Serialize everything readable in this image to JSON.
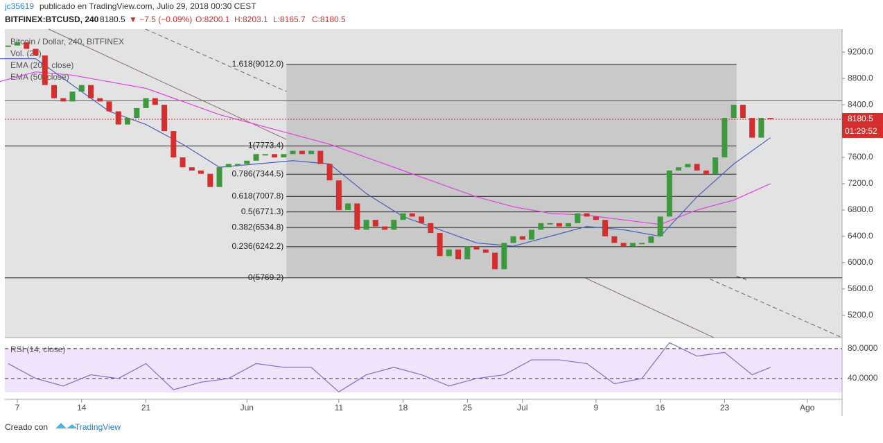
{
  "header": {
    "user": "jc35619",
    "published": "publicado en TradingView.com, Julio 29, 2018 00:30 CEST",
    "symbol": "BITFINEX:BTCUSD, 240",
    "last": "8180.5",
    "change": "▼ −7.5 (−0.09%)",
    "open": "O:8200.1",
    "high": "H:8203.1",
    "low": "L:8165.7",
    "close": "C:8180.5"
  },
  "legend": {
    "title": "Bitcoin / Dollar, 240, BITFINEX",
    "vol": "Vol. (20)",
    "ema200": "EMA (200, close)",
    "ema50": "EMA (50, close)",
    "rsi": "RSI (14, close)"
  },
  "footer": {
    "created": "Creado con",
    "brand": "TradingView"
  },
  "chart_data": {
    "type": "candlestick",
    "xlim": [
      5.64,
      96.8
    ],
    "xticks": [
      {
        "value": 7,
        "label": "7"
      },
      {
        "value": 14,
        "label": "14"
      },
      {
        "value": 21,
        "label": "21"
      },
      {
        "value": 32,
        "label": "Jun"
      },
      {
        "value": 42,
        "label": "11"
      },
      {
        "value": 49,
        "label": "18"
      },
      {
        "value": 56,
        "label": "25"
      },
      {
        "value": 62,
        "label": "Jul"
      },
      {
        "value": 70,
        "label": "9"
      },
      {
        "value": 77,
        "label": "16"
      },
      {
        "value": 84,
        "label": "23"
      },
      {
        "value": 93,
        "label": "Ago"
      }
    ],
    "ylim": [
      4860,
      9550
    ],
    "yticks": [
      {
        "value": 5200,
        "label": "5200.0"
      },
      {
        "value": 5600,
        "label": "5600.0"
      },
      {
        "value": 6000,
        "label": "6000.0"
      },
      {
        "value": 6400,
        "label": "6400.0"
      },
      {
        "value": 6800,
        "label": "6800.0"
      },
      {
        "value": 7200,
        "label": "7200.0"
      },
      {
        "value": 7600,
        "label": "7600.0"
      },
      {
        "value": 8000,
        "label": "8000.0"
      },
      {
        "value": 8400,
        "label": "8400.0"
      },
      {
        "value": 8800,
        "label": "8800.0"
      },
      {
        "value": 9200,
        "label": "9200.0"
      }
    ],
    "up_color": "#3c9a3c",
    "down_color": "#d62d2d",
    "x": [
      6,
      7,
      8,
      9,
      10,
      11,
      12,
      13,
      14,
      15,
      16,
      17,
      18,
      19,
      20,
      21,
      22,
      23,
      24,
      25,
      26,
      27,
      28,
      29,
      30,
      31,
      32,
      33,
      34,
      35,
      36,
      37,
      38,
      39,
      40,
      41,
      42,
      43,
      44,
      45,
      46,
      47,
      48,
      49,
      50,
      51,
      52,
      53,
      54,
      55,
      56,
      57,
      58,
      59,
      60,
      61,
      62,
      63,
      64,
      65,
      66,
      67,
      68,
      69,
      70,
      71,
      72,
      73,
      74,
      75,
      76,
      77,
      78,
      79,
      80,
      81,
      82,
      83,
      84,
      85,
      86,
      87,
      88,
      89
    ],
    "close": [
      9300,
      9350,
      9250,
      9150,
      8700,
      8500,
      8450,
      8600,
      8700,
      8500,
      8450,
      8300,
      8100,
      8200,
      8350,
      8500,
      8400,
      8000,
      7600,
      7450,
      7400,
      7350,
      7150,
      7450,
      7500,
      7500,
      7550,
      7650,
      7650,
      7600,
      7650,
      7700,
      7650,
      7700,
      7500,
      7250,
      6800,
      6900,
      6500,
      6650,
      6550,
      6500,
      6650,
      6750,
      6700,
      6600,
      6450,
      6100,
      6200,
      6050,
      6250,
      6200,
      6150,
      5900,
      6300,
      6400,
      6350,
      6500,
      6600,
      6600,
      6550,
      6600,
      6750,
      6700,
      6650,
      6400,
      6300,
      6250,
      6300,
      6300,
      6400,
      6700,
      7400,
      7450,
      7500,
      7400,
      7350,
      7600,
      8200,
      8400,
      8200,
      7900,
      8200,
      8180
    ],
    "series": [
      {
        "name": "EMA (200, close)",
        "color": "#e040e0",
        "x": [
          5,
          9,
          13,
          17,
          21,
          25,
          29,
          33,
          37,
          41,
          45,
          49,
          53,
          57,
          61,
          65,
          69,
          73,
          77,
          81,
          85,
          89
        ],
        "values": [
          8750,
          8900,
          8850,
          8750,
          8650,
          8450,
          8250,
          8100,
          7950,
          7800,
          7600,
          7400,
          7200,
          7000,
          6850,
          6750,
          6720,
          6650,
          6580,
          6800,
          6950,
          7200
        ]
      },
      {
        "name": "EMA (50, close)",
        "color": "#4a5fc0",
        "x": [
          5,
          9,
          13,
          17,
          21,
          25,
          29,
          33,
          37,
          41,
          45,
          49,
          53,
          57,
          61,
          65,
          69,
          73,
          77,
          81,
          85,
          89
        ],
        "values": [
          9100,
          9100,
          8700,
          8300,
          8100,
          7800,
          7450,
          7500,
          7550,
          7500,
          7050,
          6700,
          6500,
          6300,
          6250,
          6400,
          6550,
          6500,
          6400,
          7000,
          7500,
          7900
        ]
      }
    ],
    "fib": [
      {
        "label": "1.618(9012.0)",
        "value": 9012
      },
      {
        "label": "1(7773.4)",
        "value": 7773.4
      },
      {
        "label": "0.786(7344.5)",
        "value": 7344.5
      },
      {
        "label": "0.618(7007.8)",
        "value": 7007.8
      },
      {
        "label": "0.5(6771.3)",
        "value": 6771.3
      },
      {
        "label": "0.382(6534.8)",
        "value": 6534.8
      },
      {
        "label": "0.236(6242.2)",
        "value": 6242.2
      },
      {
        "label": "0(5769.2)",
        "value": 5769.2
      }
    ],
    "last_price": 8180.5,
    "countdown": "01:29:52",
    "rsi": {
      "color": "#7a6fd0",
      "ylim": [
        19.5,
        92
      ],
      "yticks": [
        {
          "value": 80,
          "label": "80.0000"
        },
        {
          "value": 40,
          "label": "40.0000"
        }
      ],
      "x": [
        6,
        9,
        12,
        15,
        18,
        21,
        24,
        27,
        30,
        33,
        36,
        39,
        42,
        45,
        48,
        51,
        54,
        57,
        60,
        63,
        66,
        69,
        72,
        75,
        78,
        81,
        84,
        87,
        89
      ],
      "values": [
        60,
        40,
        30,
        45,
        40,
        60,
        25,
        35,
        40,
        60,
        55,
        55,
        22,
        45,
        55,
        45,
        30,
        40,
        45,
        65,
        65,
        60,
        33,
        40,
        88,
        70,
        75,
        45,
        55
      ]
    }
  }
}
